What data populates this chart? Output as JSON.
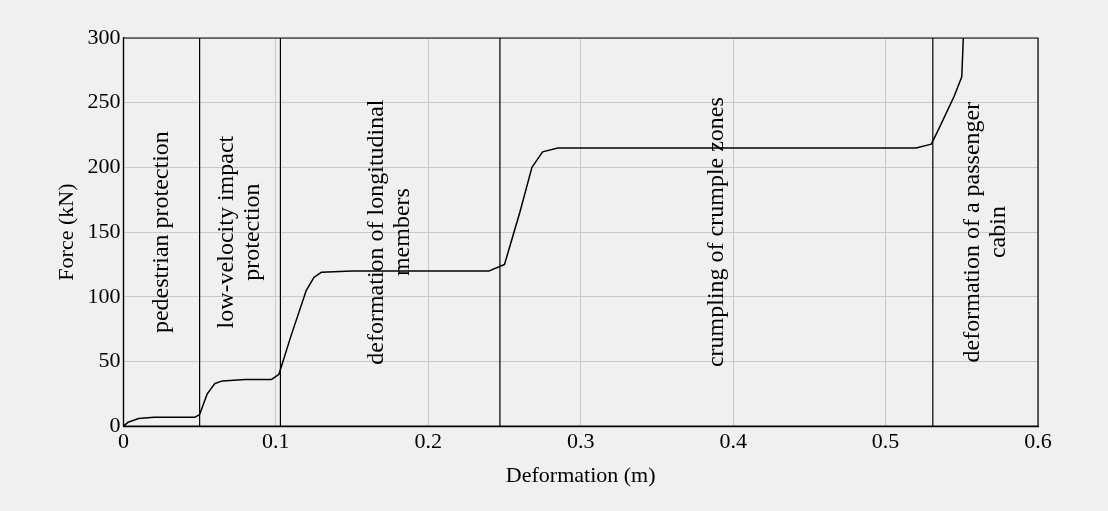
{
  "chart_data": {
    "type": "line",
    "xlabel": "Deformation (m)",
    "ylabel": "Force (kN)",
    "x": [
      0,
      0.003,
      0.01,
      0.02,
      0.047,
      0.05,
      0.055,
      0.06,
      0.065,
      0.08,
      0.097,
      0.102,
      0.11,
      0.12,
      0.125,
      0.13,
      0.15,
      0.24,
      0.25,
      0.26,
      0.268,
      0.275,
      0.285,
      0.4,
      0.52,
      0.53,
      0.535,
      0.545,
      0.55,
      0.551
    ],
    "series": [
      {
        "color": "#000000",
        "values": [
          0,
          3,
          6,
          7,
          7,
          9,
          25,
          33,
          35,
          36,
          36,
          40,
          70,
          105,
          115,
          119,
          120,
          120,
          125,
          165,
          200,
          212,
          215,
          215,
          215,
          218,
          230,
          255,
          270,
          300
        ]
      }
    ],
    "xlim": [
      0,
      0.6
    ],
    "xticks": [
      0,
      0.1,
      0.2,
      0.3,
      0.4,
      0.5,
      0.6
    ],
    "ylim": [
      0,
      300
    ],
    "yticks": [
      0,
      50,
      100,
      150,
      200,
      250,
      300
    ],
    "grid": true,
    "legend": false,
    "marker": "none",
    "line_style": "solid",
    "ref_lines": [
      {
        "axis": "x",
        "value": 0.05,
        "color": "#000000"
      },
      {
        "axis": "x",
        "value": 0.103,
        "color": "#000000"
      },
      {
        "axis": "x",
        "value": 0.247,
        "color": "#000000"
      },
      {
        "axis": "x",
        "value": 0.531,
        "color": "#000000"
      }
    ],
    "annotations": [
      "pedestrian protection",
      "low-velocity impact protection",
      "deformation of longitudinal members",
      "crumpling of crumple zones",
      "deformation of a passenger cabin"
    ]
  }
}
